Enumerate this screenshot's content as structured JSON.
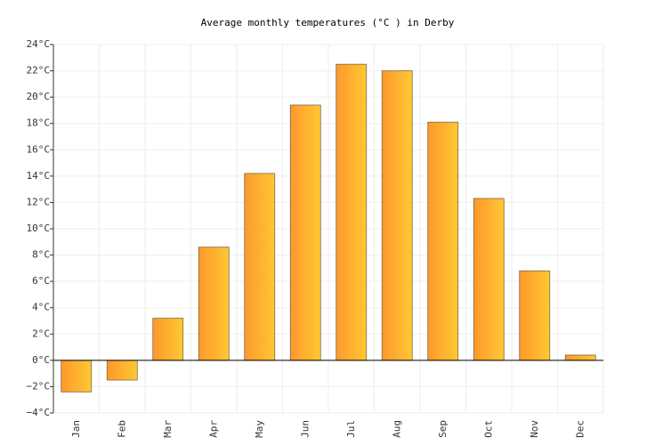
{
  "chart_data": {
    "type": "bar",
    "title": "Average monthly temperatures (°C ) in Derby",
    "categories": [
      "Jan",
      "Feb",
      "Mar",
      "Apr",
      "May",
      "Jun",
      "Jul",
      "Aug",
      "Sep",
      "Oct",
      "Nov",
      "Dec"
    ],
    "values": [
      -2.4,
      -1.5,
      3.2,
      8.6,
      14.2,
      19.4,
      22.5,
      22.0,
      18.1,
      12.3,
      6.8,
      0.4
    ],
    "colors": [
      "#fd982c",
      "#ffc833"
    ],
    "ylim": [
      -4,
      24
    ],
    "yticks": [
      {
        "value": -4,
        "label": "−4°C"
      },
      {
        "value": -2,
        "label": "−2°C"
      },
      {
        "value": 0,
        "label": "0°C"
      },
      {
        "value": 2,
        "label": "2°C"
      },
      {
        "value": 4,
        "label": "4°C"
      },
      {
        "value": 6,
        "label": "6°C"
      },
      {
        "value": 8,
        "label": "8°C"
      },
      {
        "value": 10,
        "label": "10°C"
      },
      {
        "value": 12,
        "label": "12°C"
      },
      {
        "value": 14,
        "label": "14°C"
      },
      {
        "value": 16,
        "label": "16°C"
      },
      {
        "value": 18,
        "label": "18°C"
      },
      {
        "value": 20,
        "label": "20°C"
      },
      {
        "value": 22,
        "label": "22°C"
      },
      {
        "value": 24,
        "label": "24°C"
      }
    ],
    "grid": true
  }
}
